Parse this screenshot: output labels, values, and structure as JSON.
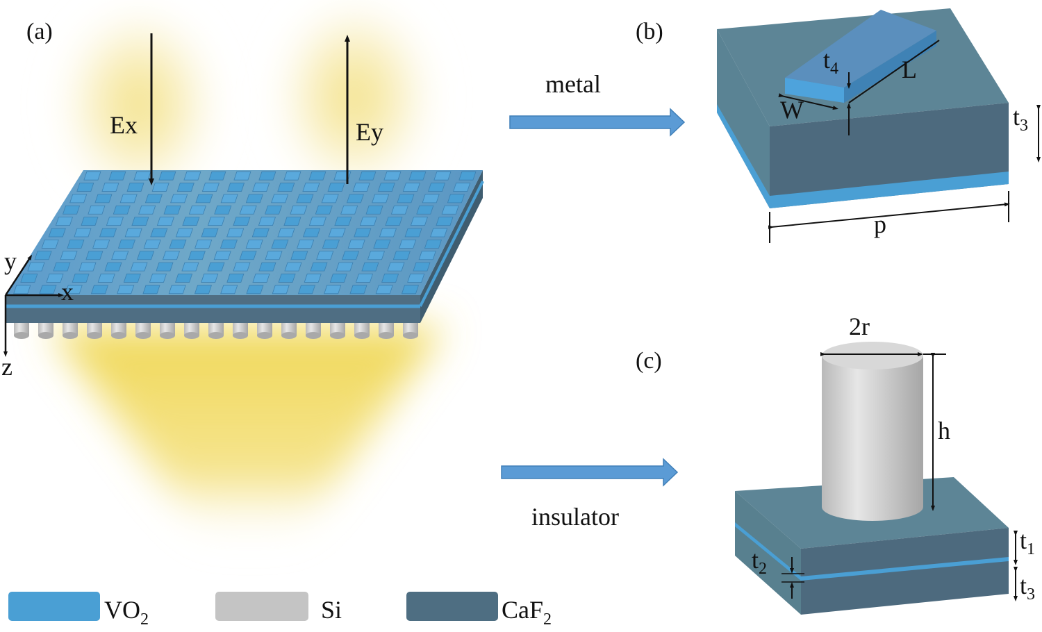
{
  "panels": {
    "a": "(a)",
    "b": "(b)",
    "c": "(c)"
  },
  "fields": {
    "ex": "Ex",
    "ey": "Ey"
  },
  "axes": {
    "x": "x",
    "y": "y",
    "z": "z"
  },
  "arrows": {
    "metal": "metal",
    "insulator": "insulator"
  },
  "dims_b": {
    "t4": "t",
    "t4_sub": "4",
    "L": "L",
    "W": "W",
    "t3": "t",
    "t3_sub": "3",
    "p": "p"
  },
  "dims_c": {
    "two_r": "2r",
    "h": "h",
    "t1": "t",
    "t1_sub": "1",
    "t2": "t",
    "t2_sub": "2",
    "t3": "t",
    "t3_sub": "3"
  },
  "legend": [
    {
      "label": "VO",
      "sub": "2",
      "color": "#4a9fd4"
    },
    {
      "label": "Si",
      "sub": "",
      "color": "#c4c4c4"
    },
    {
      "label": "CaF",
      "sub": "2",
      "color": "#4e6e82"
    }
  ],
  "colors": {
    "vo2": "#4a9fd4",
    "si": "#c4c4c4",
    "caf2": "#4e6e82",
    "light": "#f0d860",
    "arrow": "#5b9bd5"
  }
}
